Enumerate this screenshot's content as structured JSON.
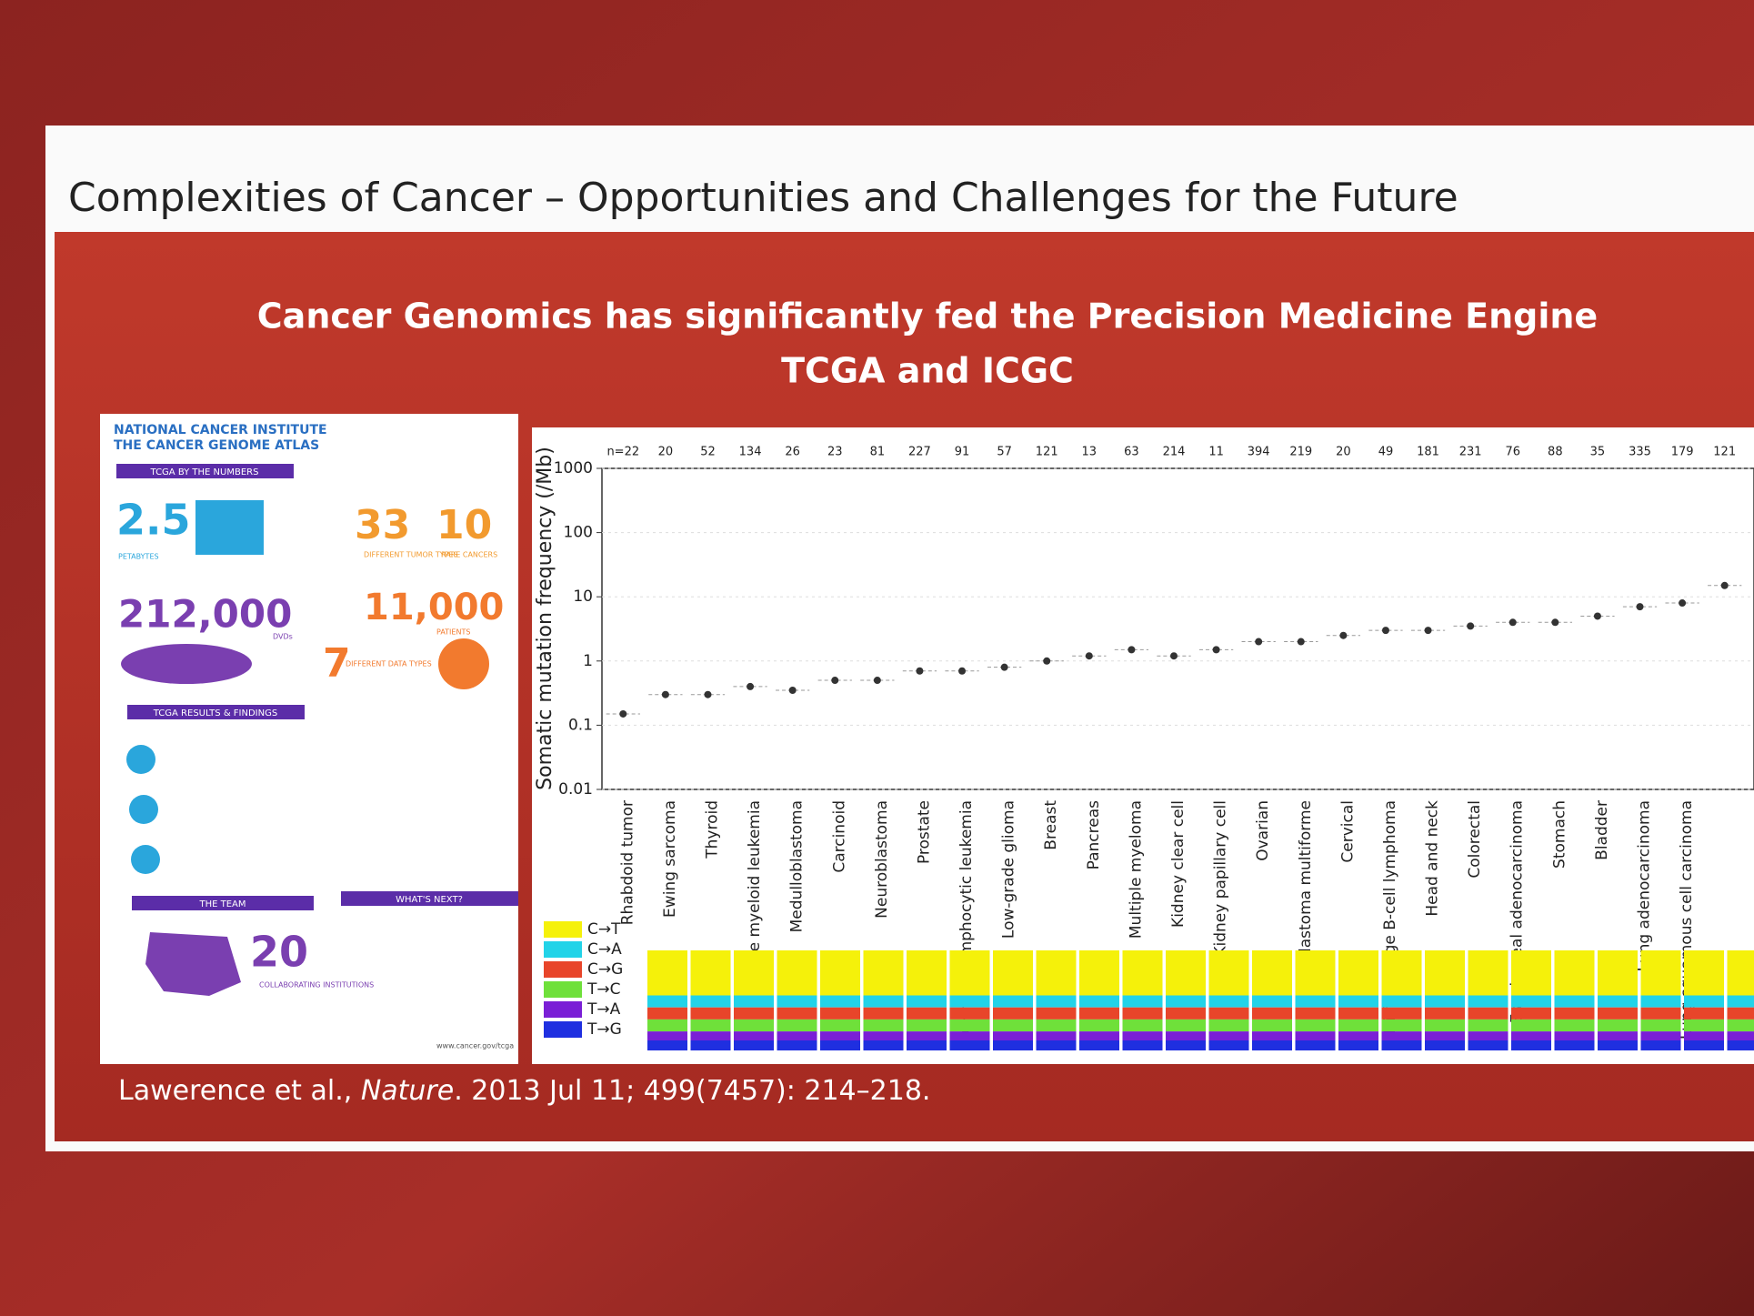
{
  "slide": {
    "title": "Complexities of Cancer – Opportunities and Challenges for the Future",
    "headline": [
      "Cancer Genomics has significantly fed the Precision Medicine Engine",
      "TCGA and ICGC"
    ],
    "citation": [
      "Lawerence et al., ",
      "Nature",
      ". 2013 Jul 11; 499(7457): 214–218."
    ]
  },
  "infographic": {
    "org": [
      "NATIONAL CANCER INSTITUTE",
      "THE CANCER GENOME ATLAS"
    ],
    "sections": [
      "TCGA BY THE NUMBERS",
      "TCGA RESULTS & FINDINGS",
      "THE TEAM",
      "WHAT'S NEXT?"
    ],
    "stats": [
      {
        "number": "2.5",
        "label": "PETABYTES"
      },
      {
        "number": "33",
        "label": "DIFFERENT TUMOR TYPES"
      },
      {
        "number": "10",
        "label": "RARE CANCERS"
      },
      {
        "number": "212,000",
        "label": "DVDs"
      },
      {
        "number": "11,000",
        "label": "PATIENTS"
      },
      {
        "number": "7",
        "label": "DIFFERENT DATA TYPES"
      },
      {
        "number": "20",
        "label": "COLLABORATING INSTITUTIONS"
      }
    ],
    "url": "www.cancer.gov/tcga"
  },
  "chart_data": {
    "type": "strip",
    "ylabel": "Somatic mutation frequency (/Mb)",
    "categories": [
      "Rhabdoid tumor",
      "Ewing sarcoma",
      "Thyroid",
      "Acute myeloid leukemia",
      "Medulloblastoma",
      "Carcinoid",
      "Neuroblastoma",
      "Prostate",
      "Chronic lymphocytic leukemia",
      "Low-grade glioma",
      "Breast",
      "Pancreas",
      "Multiple myeloma",
      "Kidney clear cell",
      "Kidney papillary cell",
      "Ovarian",
      "Glioblastoma multiforme",
      "Cervical",
      "Diffuse large B-cell lymphoma",
      "Head and neck",
      "Colorectal",
      "Esophageal adenocarcinoma",
      "Stomach",
      "Bladder",
      "Lung adenocarcinoma",
      "Lung squamous cell carcinoma",
      null
    ],
    "n": [
      22,
      20,
      52,
      134,
      26,
      23,
      81,
      227,
      91,
      57,
      121,
      13,
      63,
      214,
      11,
      394,
      219,
      20,
      49,
      181,
      231,
      76,
      88,
      35,
      335,
      179,
      121
    ],
    "n_labels": [
      "n=22",
      "20",
      "52",
      "134",
      "26",
      "23",
      "81",
      "227",
      "91",
      "57",
      "121",
      "13",
      "63",
      "214",
      "11",
      "394",
      "219",
      "20",
      "49",
      "181",
      "231",
      "76",
      "88",
      "35",
      "335",
      "179",
      "121"
    ],
    "values": [
      0.15,
      0.3,
      0.3,
      0.4,
      0.35,
      0.5,
      0.5,
      0.7,
      0.7,
      0.8,
      1,
      1.2,
      1.5,
      1.2,
      1.5,
      2,
      2,
      2.5,
      3,
      3,
      3.5,
      4,
      4,
      5,
      7,
      8,
      15
    ],
    "color": "#333333",
    "log_scale": true,
    "ylim": [
      0.01,
      1000
    ],
    "yticks": [
      0.01,
      0.1,
      1,
      10,
      100,
      1000
    ],
    "legend": {
      "names": [
        "C→T",
        "C→A",
        "C→G",
        "T→C",
        "T→A",
        "T→G"
      ],
      "colors": [
        "#f5f10a",
        "#22d3e8",
        "#e8452a",
        "#6fe03a",
        "#7a1fd6",
        "#1f2fe0"
      ]
    }
  }
}
